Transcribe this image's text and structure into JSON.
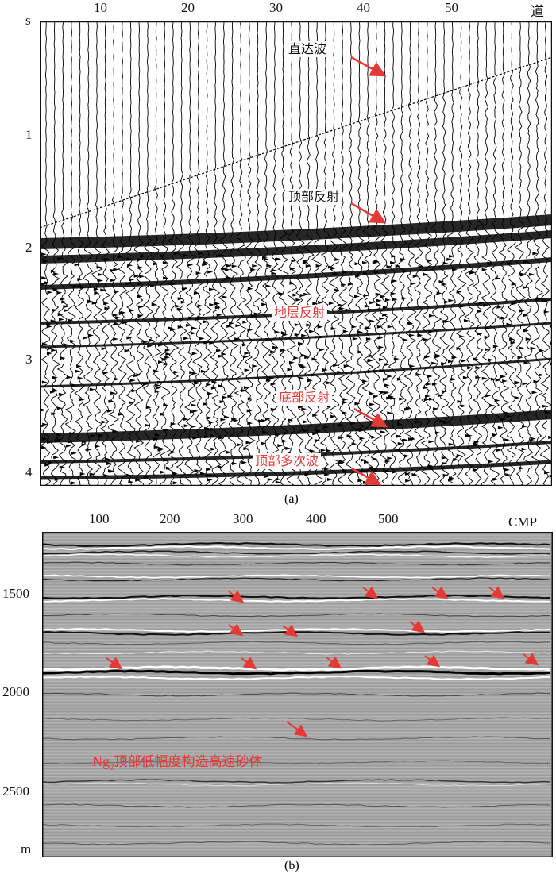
{
  "panel_a": {
    "x_ticks": [
      "10",
      "20",
      "30",
      "40",
      "50"
    ],
    "x_unit": "道",
    "y_unit": "s",
    "y_ticks": [
      "1",
      "2",
      "3",
      "4"
    ],
    "annotations": {
      "direct_wave": "直达波",
      "top_reflection": "顶部反射",
      "strata_reflection": "地层反射",
      "bottom_reflection": "底部反射",
      "top_multiple": "顶部多次波"
    },
    "caption": "(a)",
    "colors": {
      "annotation_dark": "#111111",
      "annotation_red": "#e53935",
      "arrow": "#e53935"
    }
  },
  "panel_b": {
    "x_ticks": [
      "100",
      "200",
      "300",
      "400",
      "500"
    ],
    "x_unit": "CMP",
    "y_ticks": [
      "1500",
      "2000",
      "2500"
    ],
    "y_unit": "m",
    "annotation_prefix": "Ng",
    "annotation_sub": "2",
    "annotation_rest": "顶部低幅度构造高速砂体",
    "caption": "(b)",
    "colors": {
      "annotation": "#e53935",
      "background": "#a9a9a9"
    }
  }
}
